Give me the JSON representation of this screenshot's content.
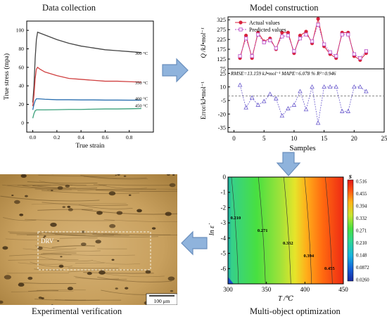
{
  "titles": {
    "data_collection": "Data collection",
    "model_construction": "Model construction",
    "experimental_verification": "Experimental verification",
    "multi_object_optimization": "Multi-object optimization"
  },
  "colors": {
    "arrow_fill": "#8fb3dc",
    "arrow_stroke": "#6a8fbd",
    "actual": "#d8213c",
    "predicted": "#b84fc4",
    "error": "#6a5acd"
  },
  "chart_data": [
    {
      "id": "stress-strain",
      "type": "line",
      "xlabel": "True strain",
      "ylabel": "True stress (mpa)",
      "xlim": [
        -0.05,
        1.0
      ],
      "ylim": [
        -10,
        110
      ],
      "xticks": [
        "0.0",
        "0.2",
        "0.4",
        "0.6",
        "0.8"
      ],
      "yticks": [
        "0",
        "20",
        "40",
        "60",
        "80",
        "100"
      ],
      "series": [
        {
          "name": "300 °C",
          "color": "#444444",
          "x": [
            0,
            0.01,
            0.02,
            0.03,
            0.04,
            0.06,
            0.1,
            0.2,
            0.3,
            0.4,
            0.5,
            0.6,
            0.7,
            0.8,
            0.9
          ],
          "y": [
            22,
            40,
            70,
            90,
            98,
            97,
            95,
            90,
            86,
            83,
            81,
            79,
            78,
            77,
            76
          ]
        },
        {
          "name": "350 °C",
          "color": "#d04040",
          "x": [
            0,
            0.01,
            0.02,
            0.03,
            0.04,
            0.06,
            0.1,
            0.2,
            0.3,
            0.4,
            0.5,
            0.6,
            0.7,
            0.8,
            0.9
          ],
          "y": [
            18,
            30,
            48,
            58,
            60,
            58,
            55,
            51,
            48,
            47,
            46,
            45,
            45,
            44.5,
            44
          ]
        },
        {
          "name": "400 °C",
          "color": "#2a6fb0",
          "x": [
            0,
            0.01,
            0.02,
            0.03,
            0.05,
            0.1,
            0.2,
            0.3,
            0.4,
            0.5,
            0.6,
            0.7,
            0.8,
            0.9
          ],
          "y": [
            14,
            20,
            24,
            26,
            26,
            25.5,
            25,
            25,
            24.8,
            24.8,
            24.6,
            24.6,
            24.5,
            24.5
          ]
        },
        {
          "name": "450 °C",
          "color": "#3aa07a",
          "x": [
            0,
            0.01,
            0.02,
            0.03,
            0.05,
            0.1,
            0.2,
            0.3,
            0.4,
            0.5,
            0.6,
            0.7,
            0.8,
            0.9
          ],
          "y": [
            5,
            10,
            13,
            14,
            14,
            14,
            14.2,
            14.5,
            14.5,
            14.8,
            15,
            15,
            15.2,
            15.5
          ]
        }
      ]
    },
    {
      "id": "q-values",
      "type": "line",
      "ylabel": "Q /kJ•mol⁻¹",
      "xlim": [
        -1,
        25
      ],
      "ylim": [
        75,
        340
      ],
      "yticks": [
        "75",
        "125",
        "175",
        "225",
        "275",
        "325"
      ],
      "series": [
        {
          "name": "Actual values",
          "x": [
            1,
            2,
            3,
            4,
            5,
            6,
            7,
            8,
            9,
            10,
            11,
            12,
            13,
            14,
            15,
            16,
            17,
            18,
            19,
            20,
            21,
            22
          ],
          "y": [
            130,
            245,
            130,
            260,
            215,
            230,
            175,
            260,
            260,
            155,
            245,
            265,
            205,
            330,
            190,
            150,
            130,
            260,
            260,
            140,
            120,
            155
          ]
        },
        {
          "name": "Predicted values",
          "x": [
            1,
            2,
            3,
            4,
            5,
            6,
            7,
            8,
            9,
            10,
            11,
            12,
            13,
            14,
            15,
            16,
            17,
            18,
            19,
            20,
            21,
            22
          ],
          "y": [
            140,
            230,
            140,
            250,
            210,
            220,
            180,
            240,
            245,
            165,
            230,
            250,
            215,
            300,
            200,
            160,
            140,
            250,
            250,
            150,
            130,
            165
          ]
        }
      ]
    },
    {
      "id": "error",
      "type": "scatter",
      "xlabel": "Samples",
      "ylabel": "Error/kJ•mol⁻¹",
      "xlim": [
        -1,
        25
      ],
      "ylim": [
        -40,
        30
      ],
      "xticks": [
        "0",
        "5",
        "10",
        "15",
        "20",
        "25"
      ],
      "yticks": [
        "-35",
        "-20",
        "-5",
        "10",
        "25"
      ],
      "annotation": "RMSE=13.159 kJ•mol⁻¹   MAPE=6.078 %   R²=0.946",
      "series": [
        {
          "name": "Error",
          "x": [
            1,
            2,
            3,
            4,
            5,
            6,
            7,
            8,
            9,
            10,
            11,
            12,
            13,
            14,
            15,
            16,
            17,
            18,
            19,
            20,
            21,
            22
          ],
          "y": [
            12,
            -13,
            -2,
            -10,
            -6,
            2,
            -3,
            -22,
            -14,
            -10,
            5,
            -15,
            10,
            -30,
            10,
            10,
            10,
            -17,
            -17,
            10,
            10,
            5
          ]
        }
      ]
    },
    {
      "id": "processing-map",
      "type": "heatmap",
      "xlabel": "T /℃",
      "ylabel": "ln ε̇",
      "colorbar_label": "s",
      "xlim": [
        300,
        450
      ],
      "ylim": [
        -7,
        0
      ],
      "xticks": [
        "300",
        "350",
        "400",
        "450"
      ],
      "yticks": [
        "0",
        "-1",
        "-2",
        "-3",
        "-4",
        "-5",
        "-6"
      ],
      "colorbar_ticks": [
        "0.516",
        "0.455",
        "0.394",
        "0.332",
        "0.271",
        "0.210",
        "0.148",
        "0.0872",
        "0.0260"
      ],
      "contours": [
        {
          "label": "0.210",
          "T": 310
        },
        {
          "label": "0.271",
          "T": 345
        },
        {
          "label": "0.332",
          "T": 378
        },
        {
          "label": "0.394",
          "T": 405
        },
        {
          "label": "0.455",
          "T": 432
        }
      ]
    }
  ],
  "micrograph": {
    "region_label": "DRV",
    "scale_bar": "100 μm"
  }
}
